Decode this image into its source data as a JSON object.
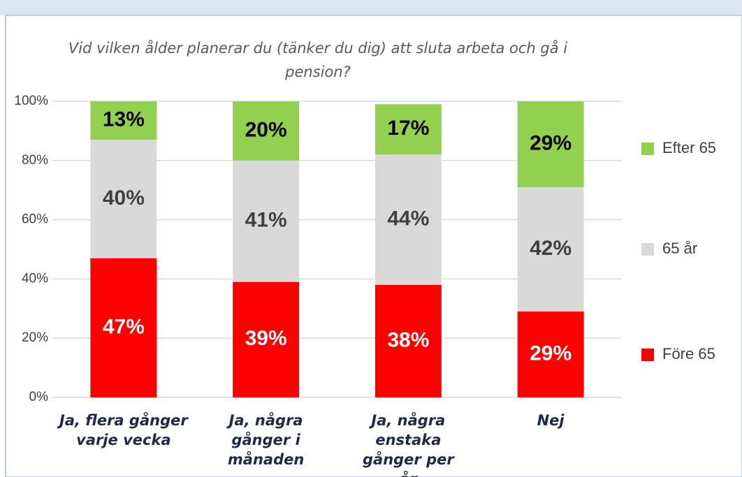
{
  "chart_data": {
    "type": "stacked_bar",
    "title": "Vid vilken ålder planerar du (tänker du dig) att sluta arbeta och gå i pension?",
    "categories": [
      "Ja, flera gånger varje vecka",
      "Ja, några gånger i månaden",
      "Ja, några enstaka gånger per år",
      "Nej"
    ],
    "series": [
      {
        "name": "Före 65",
        "color": "#ff0000",
        "values": [
          47,
          39,
          38,
          29
        ],
        "value_labels": [
          "47%",
          "39%",
          "38%",
          "29%"
        ]
      },
      {
        "name": "65 år",
        "color": "#d9d9d9",
        "values": [
          40,
          41,
          44,
          42
        ],
        "value_labels": [
          "40%",
          "41%",
          "44%",
          "42%"
        ]
      },
      {
        "name": "Efter 65",
        "color": "#92d050",
        "values": [
          13,
          20,
          17,
          29
        ],
        "value_labels": [
          "13%",
          "20%",
          "17%",
          "29%"
        ]
      }
    ],
    "ylim": [
      0,
      100
    ],
    "yticks": [
      {
        "value": 0,
        "label": "0%"
      },
      {
        "value": 20,
        "label": "20%"
      },
      {
        "value": 40,
        "label": "40%"
      },
      {
        "value": 60,
        "label": "60%"
      },
      {
        "value": 80,
        "label": "80%"
      },
      {
        "value": 100,
        "label": "100%"
      }
    ],
    "grid": true,
    "legend": "right"
  }
}
